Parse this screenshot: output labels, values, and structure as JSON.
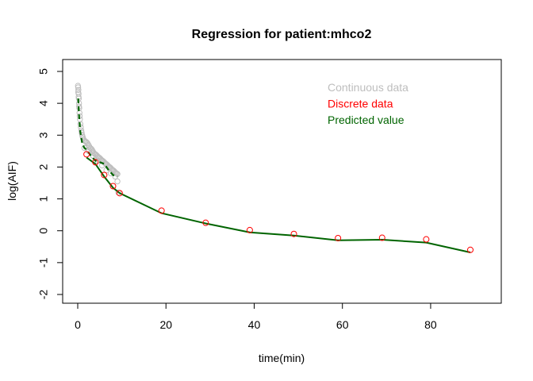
{
  "chart_data": {
    "type": "scatter",
    "title": "Regression for patient:mhco2",
    "xlabel": "time(min)",
    "ylabel": "log(AIF)",
    "xlim": [
      0,
      90
    ],
    "ylim": [
      -2,
      5
    ],
    "xticks": [
      0,
      20,
      40,
      60,
      80
    ],
    "yticks": [
      -2,
      -1,
      0,
      1,
      2,
      3,
      4,
      5
    ],
    "grid": false,
    "legend_position": "top-right",
    "legend": [
      {
        "label": "Continuous data",
        "color": "#bebebe"
      },
      {
        "label": "Discrete data",
        "color": "#ff0000"
      },
      {
        "label": "Predicted value",
        "color": "#006400"
      }
    ],
    "series": [
      {
        "name": "Continuous data",
        "style": "open-circles",
        "color": "#bebebe",
        "x": [
          0.05,
          0.1,
          0.15,
          0.2,
          0.25,
          0.3,
          0.35,
          0.4,
          0.45,
          0.5,
          0.6,
          0.7,
          0.8,
          0.9,
          1.0,
          1.1,
          1.2,
          1.4,
          1.6,
          1.8,
          2.0,
          2.2,
          2.4,
          2.6,
          2.8,
          3.0,
          3.2,
          3.4,
          3.6,
          3.8,
          4.0,
          4.2,
          4.4,
          4.6,
          4.8,
          5.0,
          5.2,
          5.4,
          5.6,
          5.8,
          6.0,
          6.2,
          6.4,
          6.6,
          6.8,
          7.0,
          7.2,
          7.4,
          7.6,
          7.8,
          8.0,
          8.2,
          8.4,
          8.6,
          8.8,
          9.0,
          9.2,
          0.1,
          0.2,
          0.3,
          1.5,
          2.5,
          3.5,
          4.5,
          5.5,
          6.5,
          7.5,
          8.5,
          9.0
        ],
        "y": [
          4.55,
          4.5,
          4.42,
          4.3,
          4.15,
          4.0,
          3.85,
          3.7,
          3.6,
          3.5,
          3.35,
          3.25,
          3.15,
          3.08,
          3.0,
          2.95,
          2.9,
          2.85,
          2.82,
          2.8,
          2.78,
          2.75,
          2.7,
          2.65,
          2.6,
          2.58,
          2.55,
          2.5,
          2.45,
          2.42,
          2.4,
          2.38,
          2.35,
          2.32,
          2.3,
          2.28,
          2.25,
          2.22,
          2.2,
          2.18,
          2.15,
          2.12,
          2.1,
          2.08,
          2.05,
          2.02,
          2.0,
          1.98,
          1.95,
          1.92,
          1.9,
          1.88,
          1.85,
          1.82,
          1.8,
          1.78,
          1.2,
          4.35,
          4.2,
          3.9,
          2.6,
          2.5,
          2.35,
          2.2,
          2.05,
          1.9,
          1.8,
          1.7,
          1.55
        ]
      },
      {
        "name": "Discrete data",
        "style": "open-circles",
        "color": "#ff0000",
        "x": [
          2,
          4,
          6,
          8,
          9.5,
          19,
          29,
          39,
          49,
          59,
          69,
          79,
          89
        ],
        "y": [
          2.4,
          2.15,
          1.75,
          1.4,
          1.18,
          0.63,
          0.25,
          0.02,
          -0.1,
          -0.23,
          -0.22,
          -0.27,
          -0.6
        ]
      },
      {
        "name": "Predicted value",
        "style": "line",
        "color": "#006400",
        "x": [
          2,
          4,
          6,
          8,
          9.5,
          19,
          29,
          39,
          49,
          59,
          69,
          79,
          89
        ],
        "y": [
          2.3,
          2.1,
          1.7,
          1.35,
          1.18,
          0.55,
          0.23,
          -0.05,
          -0.15,
          -0.3,
          -0.28,
          -0.37,
          -0.68
        ]
      },
      {
        "name": "Predicted value (continuous)",
        "style": "dashed-line",
        "color": "#006400",
        "x": [
          0.1,
          0.3,
          0.6,
          1.0,
          1.5,
          2.0,
          3.0,
          4.0,
          5.0,
          6.0,
          7.0,
          8.0,
          9.0
        ],
        "y": [
          4.15,
          3.6,
          3.1,
          2.75,
          2.6,
          2.55,
          2.35,
          2.2,
          2.15,
          2.1,
          1.9,
          1.75,
          1.7
        ]
      }
    ]
  }
}
